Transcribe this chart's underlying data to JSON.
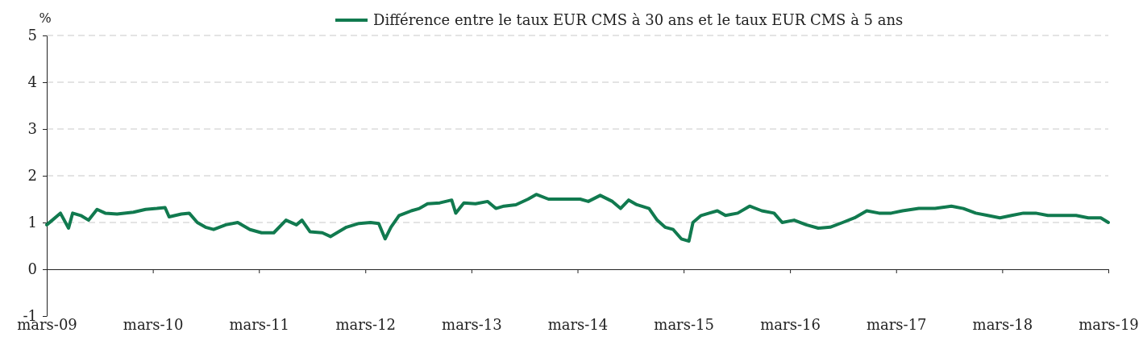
{
  "chart_data": {
    "type": "line",
    "ylabel": "%",
    "legend": "top",
    "grid": "y",
    "line_style": "solid",
    "marker": "none",
    "xlim": [
      "2009-03-01",
      "2019-03-01"
    ],
    "xticks": [
      {
        "value": "2009-03-01",
        "label": "mars-09"
      },
      {
        "value": "2010-03-01",
        "label": "mars-10"
      },
      {
        "value": "2011-03-01",
        "label": "mars-11"
      },
      {
        "value": "2012-03-01",
        "label": "mars-12"
      },
      {
        "value": "2013-03-01",
        "label": "mars-13"
      },
      {
        "value": "2014-03-01",
        "label": "mars-14"
      },
      {
        "value": "2015-03-01",
        "label": "mars-15"
      },
      {
        "value": "2016-03-01",
        "label": "mars-16"
      },
      {
        "value": "2017-03-01",
        "label": "mars-17"
      },
      {
        "value": "2018-03-01",
        "label": "mars-18"
      },
      {
        "value": "2019-03-01",
        "label": "mars-19"
      }
    ],
    "ylim": [
      -1,
      5
    ],
    "yticks": [
      -1,
      0,
      1,
      2,
      3,
      4,
      5
    ],
    "x": [
      "2009-03-01",
      "2009-03-20",
      "2009-04-17",
      "2009-05-15",
      "2009-05-29",
      "2009-06-26",
      "2009-07-23",
      "2009-08-21",
      "2009-09-18",
      "2009-10-29",
      "2009-12-24",
      "2010-02-04",
      "2010-03-15",
      "2010-04-12",
      "2010-04-26",
      "2010-06-07",
      "2010-07-04",
      "2010-08-01",
      "2010-08-29",
      "2010-09-26",
      "2010-11-07",
      "2010-12-18",
      "2011-01-29",
      "2011-03-10",
      "2011-04-21",
      "2011-06-02",
      "2011-07-08",
      "2011-07-27",
      "2011-08-24",
      "2011-10-05",
      "2011-11-02",
      "2011-11-30",
      "2011-12-27",
      "2012-02-08",
      "2012-03-19",
      "2012-04-16",
      "2012-05-08",
      "2012-05-28",
      "2012-06-25",
      "2012-08-06",
      "2012-09-03",
      "2012-10-01",
      "2012-11-12",
      "2012-12-23",
      "2013-01-06",
      "2013-02-03",
      "2013-03-15",
      "2013-04-26",
      "2013-05-24",
      "2013-06-21",
      "2013-08-01",
      "2013-09-12",
      "2013-10-10",
      "2013-11-21",
      "2014-01-15",
      "2014-03-10",
      "2014-04-07",
      "2014-05-18",
      "2014-06-29",
      "2014-07-27",
      "2014-08-24",
      "2014-09-21",
      "2014-11-02",
      "2014-11-30",
      "2014-12-27",
      "2015-01-24",
      "2015-02-21",
      "2015-03-19",
      "2015-04-02",
      "2015-04-30",
      "2015-05-28",
      "2015-06-25",
      "2015-07-23",
      "2015-09-03",
      "2015-10-14",
      "2015-11-25",
      "2016-01-06",
      "2016-02-03",
      "2016-03-15",
      "2016-04-26",
      "2016-06-06",
      "2016-07-17",
      "2016-08-29",
      "2016-10-09",
      "2016-11-20",
      "2017-01-01",
      "2017-02-12",
      "2017-03-23",
      "2017-05-18",
      "2017-07-13",
      "2017-09-07",
      "2017-10-18",
      "2017-11-30",
      "2018-01-10",
      "2018-02-21",
      "2018-04-02",
      "2018-05-13",
      "2018-06-24",
      "2018-08-05",
      "2018-09-30",
      "2018-11-10",
      "2018-12-22",
      "2019-02-03",
      "2019-03-01"
    ],
    "series": [
      {
        "name": "Différence entre le taux EUR CMS à 30 ans et le taux EUR CMS à 5 ans",
        "color": "#117a4f",
        "values": [
          0.95,
          1.05,
          1.2,
          0.88,
          1.2,
          1.15,
          1.05,
          1.28,
          1.2,
          1.18,
          1.22,
          1.28,
          1.3,
          1.32,
          1.12,
          1.18,
          1.2,
          1.0,
          0.9,
          0.85,
          0.95,
          1.0,
          0.85,
          0.78,
          0.78,
          1.05,
          0.95,
          1.05,
          0.8,
          0.78,
          0.7,
          0.8,
          0.9,
          0.98,
          1.0,
          0.98,
          0.65,
          0.9,
          1.15,
          1.25,
          1.3,
          1.4,
          1.42,
          1.48,
          1.2,
          1.42,
          1.4,
          1.45,
          1.3,
          1.35,
          1.38,
          1.5,
          1.6,
          1.5,
          1.5,
          1.5,
          1.45,
          1.58,
          1.45,
          1.3,
          1.48,
          1.38,
          1.3,
          1.05,
          0.9,
          0.85,
          0.65,
          0.6,
          1.0,
          1.15,
          1.2,
          1.25,
          1.15,
          1.2,
          1.35,
          1.25,
          1.2,
          1.0,
          1.05,
          0.95,
          0.88,
          0.9,
          1.0,
          1.1,
          1.25,
          1.2,
          1.2,
          1.25,
          1.3,
          1.3,
          1.35,
          1.3,
          1.2,
          1.15,
          1.1,
          1.15,
          1.2,
          1.2,
          1.15,
          1.15,
          1.15,
          1.1,
          1.1,
          1.0
        ]
      }
    ]
  }
}
